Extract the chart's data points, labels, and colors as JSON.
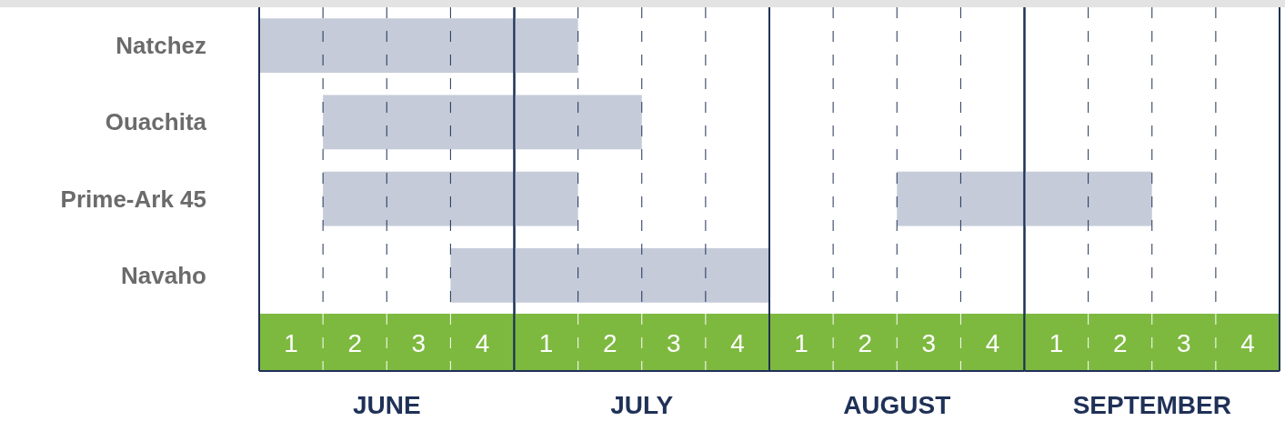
{
  "chart_data": [
    {
      "type": "bar",
      "orientation": "horizontal",
      "categories": [
        "Natchez",
        "Ouachita",
        "Prime-Ark 45",
        "Navaho"
      ],
      "xlabel": "JUNE",
      "xlim": [
        0.5,
        4.5
      ],
      "xticks": [
        1,
        {
          "value": 1.5,
          "label": null
        },
        2,
        {
          "value": 2.5,
          "label": null
        },
        3,
        {
          "value": 3.5,
          "label": null
        },
        4
      ],
      "grid": "x",
      "series": [
        {
          "color": "#c5cbd9",
          "base": [
            0.5,
            1.5,
            1.5,
            3.5
          ],
          "values": [
            4,
            3,
            3,
            1
          ]
        }
      ]
    },
    {
      "type": "bar",
      "orientation": "horizontal",
      "tick_labels": "x",
      "xlabel": "JULY",
      "xlim": [
        0.5,
        4.5
      ],
      "xticks": [
        1,
        {
          "value": 1.5,
          "label": null
        },
        2,
        {
          "value": 2.5,
          "label": null
        },
        3,
        {
          "value": 3.5,
          "label": null
        },
        4
      ],
      "grid": "x",
      "series": [
        {
          "color": "#c5cbd9",
          "base": [
            0.5,
            0.5,
            0.5,
            0.5
          ],
          "values": [
            1,
            2,
            1,
            4
          ]
        }
      ]
    },
    {
      "type": "bar",
      "orientation": "horizontal",
      "tick_labels": "x",
      "xlabel": "AUGUST",
      "xlim": [
        0.5,
        4.5
      ],
      "xticks": [
        1,
        {
          "value": 1.5,
          "label": null
        },
        2,
        {
          "value": 2.5,
          "label": null
        },
        3,
        {
          "value": 3.5,
          "label": null
        },
        4
      ],
      "grid": "x",
      "series": [
        {
          "color": "#c5cbd9",
          "base": [
            null,
            null,
            2.5,
            null
          ],
          "values": [
            null,
            null,
            2,
            null
          ]
        }
      ]
    },
    {
      "type": "bar",
      "orientation": "horizontal",
      "tick_labels": "x",
      "xlabel": "SEPTEMBER",
      "xlim": [
        0.5,
        4.5
      ],
      "xticks": [
        1,
        {
          "value": 1.5,
          "label": null
        },
        2,
        {
          "value": 2.5,
          "label": null
        },
        3,
        {
          "value": 3.5,
          "label": null
        },
        4
      ],
      "grid": "x",
      "series": [
        {
          "color": "#c5cbd9",
          "base": [
            null,
            null,
            0.5,
            null
          ],
          "values": [
            null,
            null,
            2,
            null
          ]
        }
      ]
    }
  ]
}
